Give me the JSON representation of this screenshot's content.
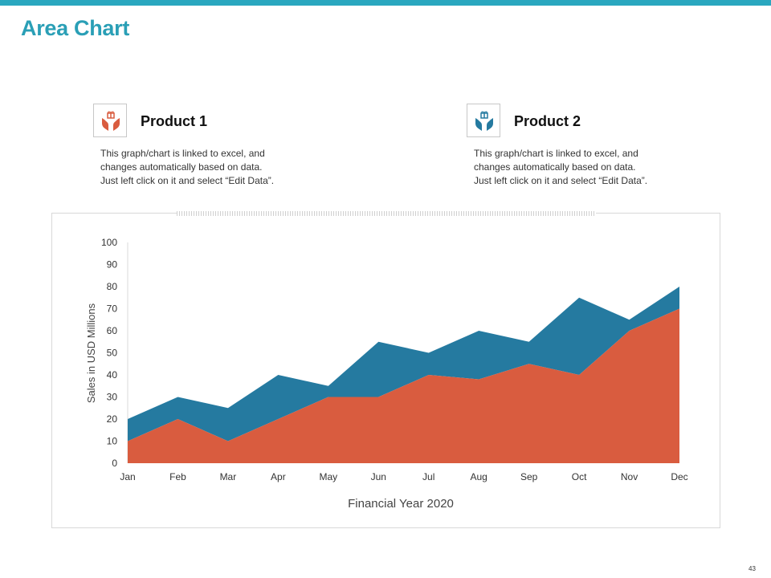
{
  "slide": {
    "title": "Area Chart",
    "page_number": "43"
  },
  "products": [
    {
      "name": "Product 1",
      "icon": "hands-gift-icon",
      "color": "#d95c3f",
      "description": [
        "This graph/chart is linked to excel, and",
        "changes automatically based on data.",
        "Just left click on it and select “Edit Data”."
      ]
    },
    {
      "name": "Product 2",
      "icon": "hands-gift-icon",
      "color": "#257aa0",
      "description": [
        "This graph/chart is linked to excel, and",
        "changes automatically based on data.",
        "Just left click on it and select “Edit Data”."
      ]
    }
  ],
  "chart_data": {
    "type": "area",
    "stacked": true,
    "categories": [
      "Jan",
      "Feb",
      "Mar",
      "Apr",
      "May",
      "Jun",
      "Jul",
      "Aug",
      "Sep",
      "Oct",
      "Nov",
      "Dec"
    ],
    "series": [
      {
        "values": [
          10,
          20,
          10,
          20,
          30,
          30,
          40,
          38,
          45,
          40,
          60,
          70
        ],
        "color": "#d95c3f"
      },
      {
        "values": [
          10,
          10,
          15,
          20,
          5,
          25,
          10,
          22,
          10,
          35,
          5,
          10
        ],
        "color": "#257aa0"
      }
    ],
    "xlabel": "Financial Year 2020",
    "ylabel": "Sales in USD Millions",
    "ylim": [
      0,
      100
    ],
    "yticks": [
      0,
      10,
      20,
      30,
      40,
      50,
      60,
      70,
      80,
      90,
      100
    ],
    "grid": false,
    "legend": "none"
  }
}
